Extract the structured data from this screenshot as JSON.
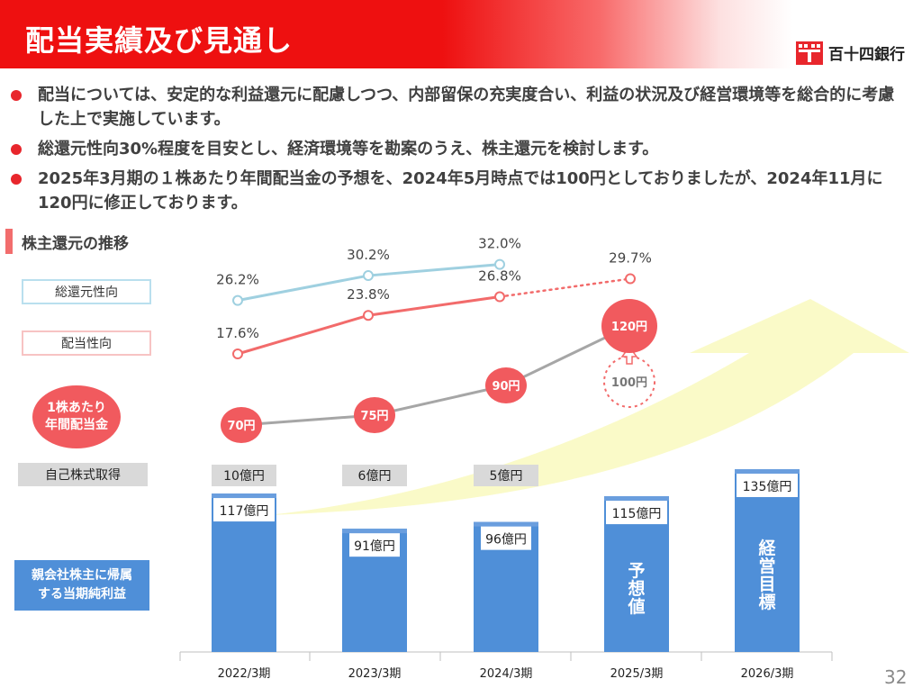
{
  "header": {
    "title": "配当実績及び見通し",
    "company": "百十四銀行"
  },
  "bullets": [
    "配当については、安定的な利益還元に配慮しつつ、内部留保の充実度合い、利益の状況及び経営環境等を総合的に考慮した上で実施しています。",
    "総還元性向30%程度を目安とし、経済環境等を勘案のうえ、株主還元を検討します。",
    "2025年3月期の１株あたり年間配当金の予想を、2024年5月時点では100円としておりましたが、2024年11月に120円に修正しております。"
  ],
  "section_title": "株主還元の推移",
  "labels": {
    "total_payout": "総還元性向",
    "payout": "配当性向",
    "dps_line1": "1株あたり",
    "dps_line2": "年間配当金",
    "buyback": "自己株式取得",
    "net_income_line1": "親会社株主に帰属",
    "net_income_line2": "する当期純利益"
  },
  "page_number": "32",
  "colors": {
    "brand_red": "#ee1010",
    "total_payout_line": "#9fd0e0",
    "payout_line": "#f26b6b",
    "dps_bubble": "#f15a5e",
    "dps_line": "#a6a6a6",
    "bars": "#4f8fd8",
    "bars_top": "#6a9ede",
    "buyback_box": "#d9d9d9",
    "arrow": "#fafac8"
  },
  "chart_data": {
    "type": "bar",
    "categories": [
      "2022/3期",
      "2023/3期",
      "2024/3期",
      "2025/3期",
      "2026/3期"
    ],
    "net_income": {
      "values": [
        117,
        91,
        96,
        115,
        135
      ],
      "labels": [
        "117億円",
        "91億円",
        "96億円",
        "115億円",
        "135億円"
      ],
      "notes": [
        "",
        "",
        "",
        "予想値",
        "経営目標"
      ]
    },
    "buyback": {
      "values": [
        10,
        6,
        5,
        null,
        null
      ],
      "labels": [
        "10億円",
        "6億円",
        "5億円",
        "",
        ""
      ]
    },
    "total_payout_ratio": {
      "values": [
        26.2,
        30.2,
        32.0,
        null,
        null
      ],
      "labels": [
        "26.2%",
        "30.2%",
        "32.0%",
        "",
        ""
      ]
    },
    "payout_ratio": {
      "values": [
        17.6,
        23.8,
        26.8,
        29.7,
        null
      ],
      "labels": [
        "17.6%",
        "23.8%",
        "26.8%",
        "29.7%",
        ""
      ],
      "forecast_from_index": 2
    },
    "dividend_per_share": {
      "values": [
        70,
        75,
        90,
        120,
        null
      ],
      "labels": [
        "70円",
        "75円",
        "90円",
        "120円",
        ""
      ],
      "previous_forecast": {
        "index": 3,
        "value": 100,
        "label": "100円"
      }
    }
  }
}
